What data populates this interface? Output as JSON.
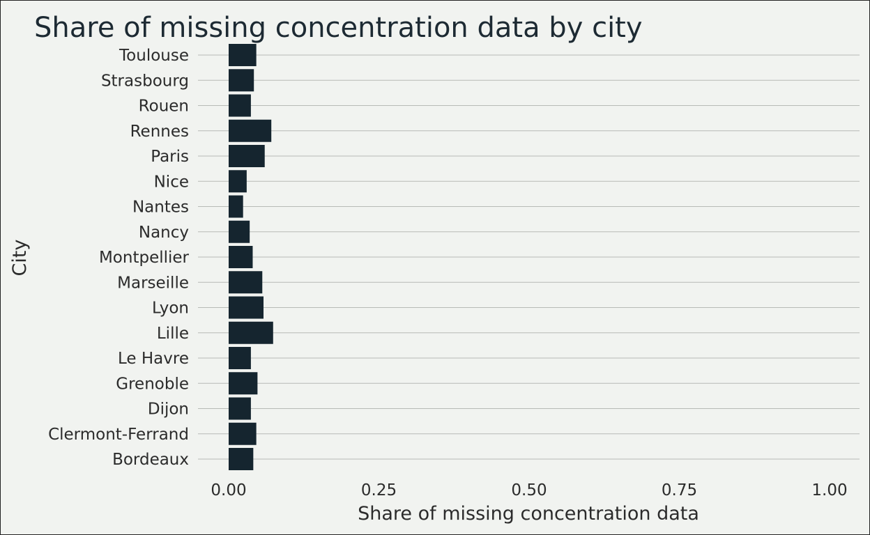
{
  "chart_data": {
    "type": "bar",
    "orientation": "horizontal",
    "title": "Share of missing concentration data by city",
    "xlabel": "Share of missing concentration data",
    "ylabel": "City",
    "xlim": [
      0,
      1
    ],
    "xticks": [
      "0.00",
      "0.25",
      "0.50",
      "0.75",
      "1.00"
    ],
    "xtick_values": [
      0,
      0.25,
      0.5,
      0.75,
      1.0
    ],
    "grid": "horizontal",
    "bar_color": "#15252f",
    "background": "#f1f3f0",
    "categories": [
      "Toulouse",
      "Strasbourg",
      "Rouen",
      "Rennes",
      "Paris",
      "Nice",
      "Nantes",
      "Nancy",
      "Montpellier",
      "Marseille",
      "Lyon",
      "Lille",
      "Le Havre",
      "Grenoble",
      "Dijon",
      "Clermont-Ferrand",
      "Bordeaux"
    ],
    "values": [
      0.046,
      0.042,
      0.037,
      0.071,
      0.06,
      0.03,
      0.024,
      0.035,
      0.04,
      0.056,
      0.058,
      0.074,
      0.037,
      0.048,
      0.037,
      0.046,
      0.041
    ]
  }
}
